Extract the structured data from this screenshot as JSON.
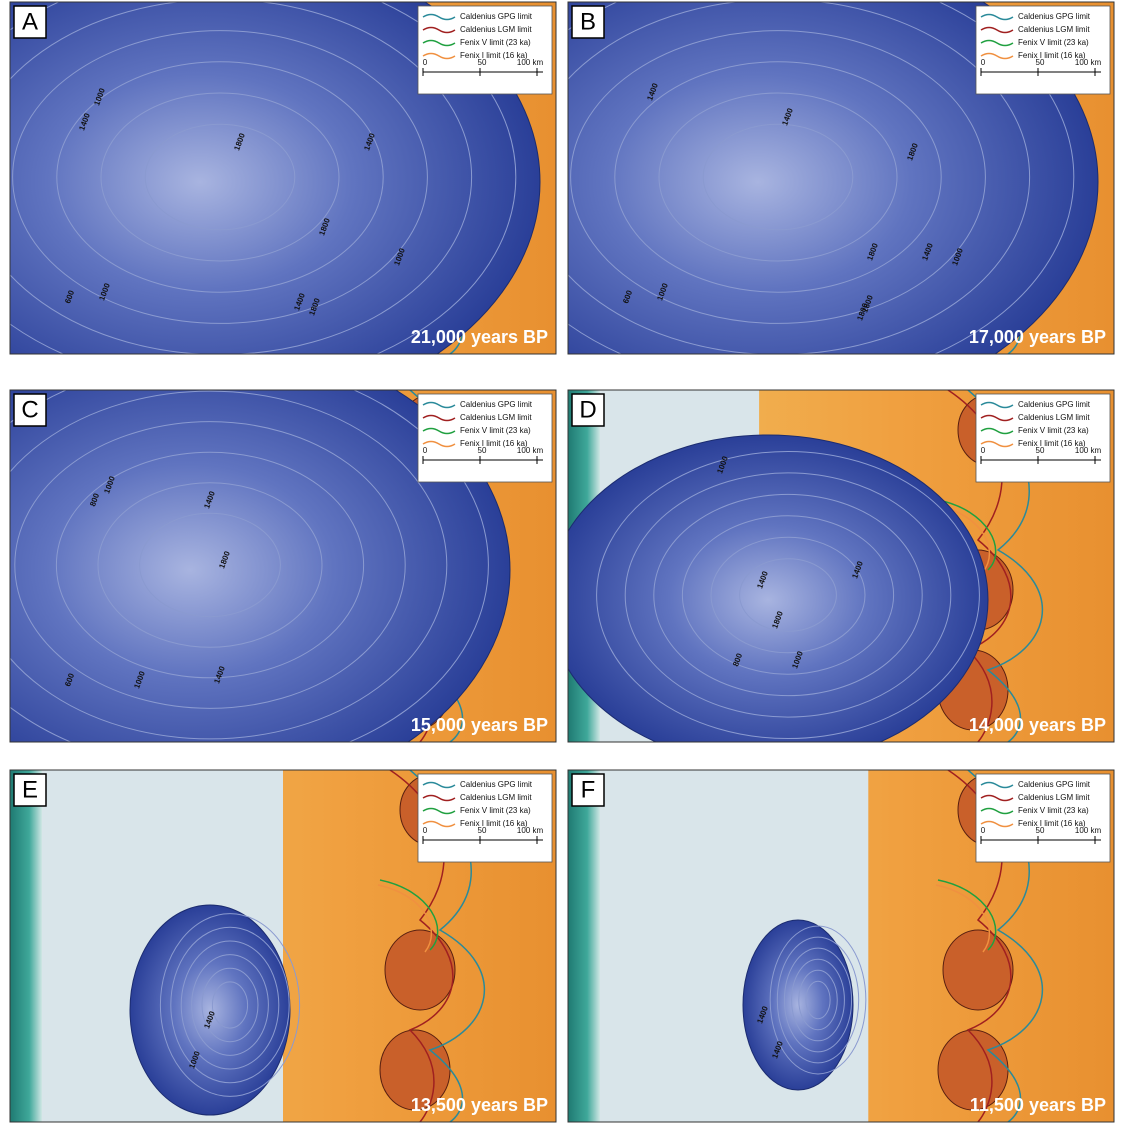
{
  "legend": {
    "entries": [
      "Caldenius GPG limit",
      "Caldenius LGM limit",
      "Fenix V limit (23 ka)",
      "Fenix I limit (16 ka)"
    ],
    "scale_ticks": [
      "0",
      "50",
      "100 km"
    ]
  },
  "panels": [
    {
      "letter": "A",
      "time": "21,000 years BP",
      "contour_labels": [
        "1000",
        "1400",
        "1800",
        "1800",
        "1400",
        "1000",
        "1400",
        "1800",
        "1000",
        "600"
      ]
    },
    {
      "letter": "B",
      "time": "17,000 years BP",
      "contour_labels": [
        "1400",
        "1400",
        "1800",
        "1800",
        "1400",
        "1000",
        "1800",
        "1800",
        "1000",
        "600"
      ]
    },
    {
      "letter": "C",
      "time": "15,000 years BP",
      "contour_labels": [
        "1000",
        "1400",
        "1800",
        "1400",
        "1000",
        "600",
        "800"
      ]
    },
    {
      "letter": "D",
      "time": "14,000 years BP",
      "contour_labels": [
        "1000",
        "1400",
        "1800",
        "1400",
        "1000",
        "800"
      ]
    },
    {
      "letter": "E",
      "time": "13,500 years BP",
      "contour_labels": [
        "1400",
        "1000"
      ]
    },
    {
      "letter": "F",
      "time": "11,500 years BP",
      "contour_labels": [
        "1400",
        "1400"
      ]
    }
  ]
}
